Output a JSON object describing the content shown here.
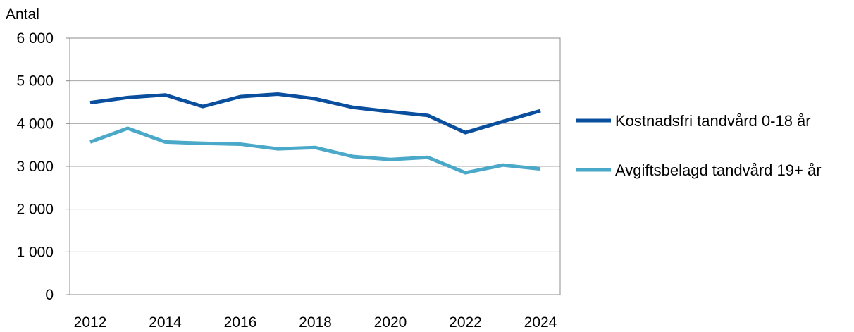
{
  "chart_data": {
    "type": "line",
    "title": "",
    "ylabel": "Antal",
    "xlabel": "",
    "x": [
      2012,
      2013,
      2014,
      2015,
      2016,
      2017,
      2018,
      2019,
      2020,
      2021,
      2022,
      2023,
      2024
    ],
    "x_tick_labels": [
      "2012",
      "2014",
      "2016",
      "2018",
      "2020",
      "2022",
      "2024"
    ],
    "y_tick_labels": [
      "0",
      "1 000",
      "2 000",
      "3 000",
      "4 000",
      "5 000",
      "6 000"
    ],
    "ylim": [
      0,
      6000
    ],
    "grid": true,
    "legend_position": "right",
    "series": [
      {
        "name": "Kostnadsfri tandvård 0-18 år",
        "color": "#0a4f9e",
        "values": [
          4490,
          4610,
          4670,
          4400,
          4630,
          4690,
          4580,
          4380,
          4280,
          4190,
          3790,
          4050,
          4300
        ]
      },
      {
        "name": "Avgiftsbelagd tandvård 19+ år",
        "color": "#4aa8c8",
        "values": [
          3570,
          3890,
          3570,
          3540,
          3520,
          3410,
          3440,
          3230,
          3160,
          3210,
          2850,
          3030,
          2940
        ]
      }
    ]
  }
}
